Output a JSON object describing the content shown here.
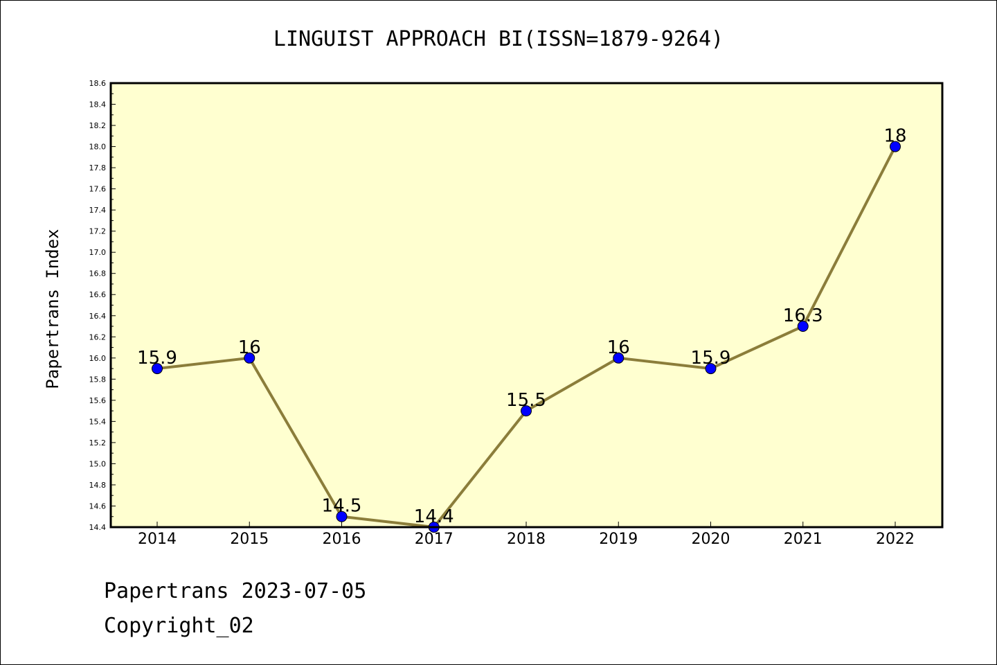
{
  "chart_data": {
    "type": "line",
    "title": "LINGUIST APPROACH BI(ISSN=1879-9264)",
    "xlabel": "",
    "ylabel": "Papertrans Index",
    "categories": [
      "2014",
      "2015",
      "2016",
      "2017",
      "2018",
      "2019",
      "2020",
      "2021",
      "2022"
    ],
    "series": [
      {
        "values": [
          15.9,
          16.0,
          14.5,
          14.4,
          15.5,
          16.0,
          15.9,
          16.3,
          18.0
        ],
        "labels": [
          "15.9",
          "16",
          "14.5",
          "14.4",
          "15.5",
          "16",
          "15.9",
          "16.3",
          "18"
        ],
        "line_color": "#8b7d3a",
        "marker_color": "#0000ff"
      }
    ],
    "ylim": [
      14.4,
      18.6
    ],
    "yticks": [
      "14.4",
      "14.6",
      "14.8",
      "15.0",
      "15.2",
      "15.4",
      "15.6",
      "15.8",
      "16.0",
      "16.2",
      "16.4",
      "16.6",
      "16.8",
      "17.0",
      "17.2",
      "17.4",
      "17.6",
      "17.8",
      "18.0",
      "18.2",
      "18.4",
      "18.6"
    ],
    "plot_background": "#ffffd0",
    "grid": false,
    "legend": "none"
  },
  "footer": {
    "line1": "Papertrans 2023-07-05",
    "line2": "Copyright_02"
  }
}
